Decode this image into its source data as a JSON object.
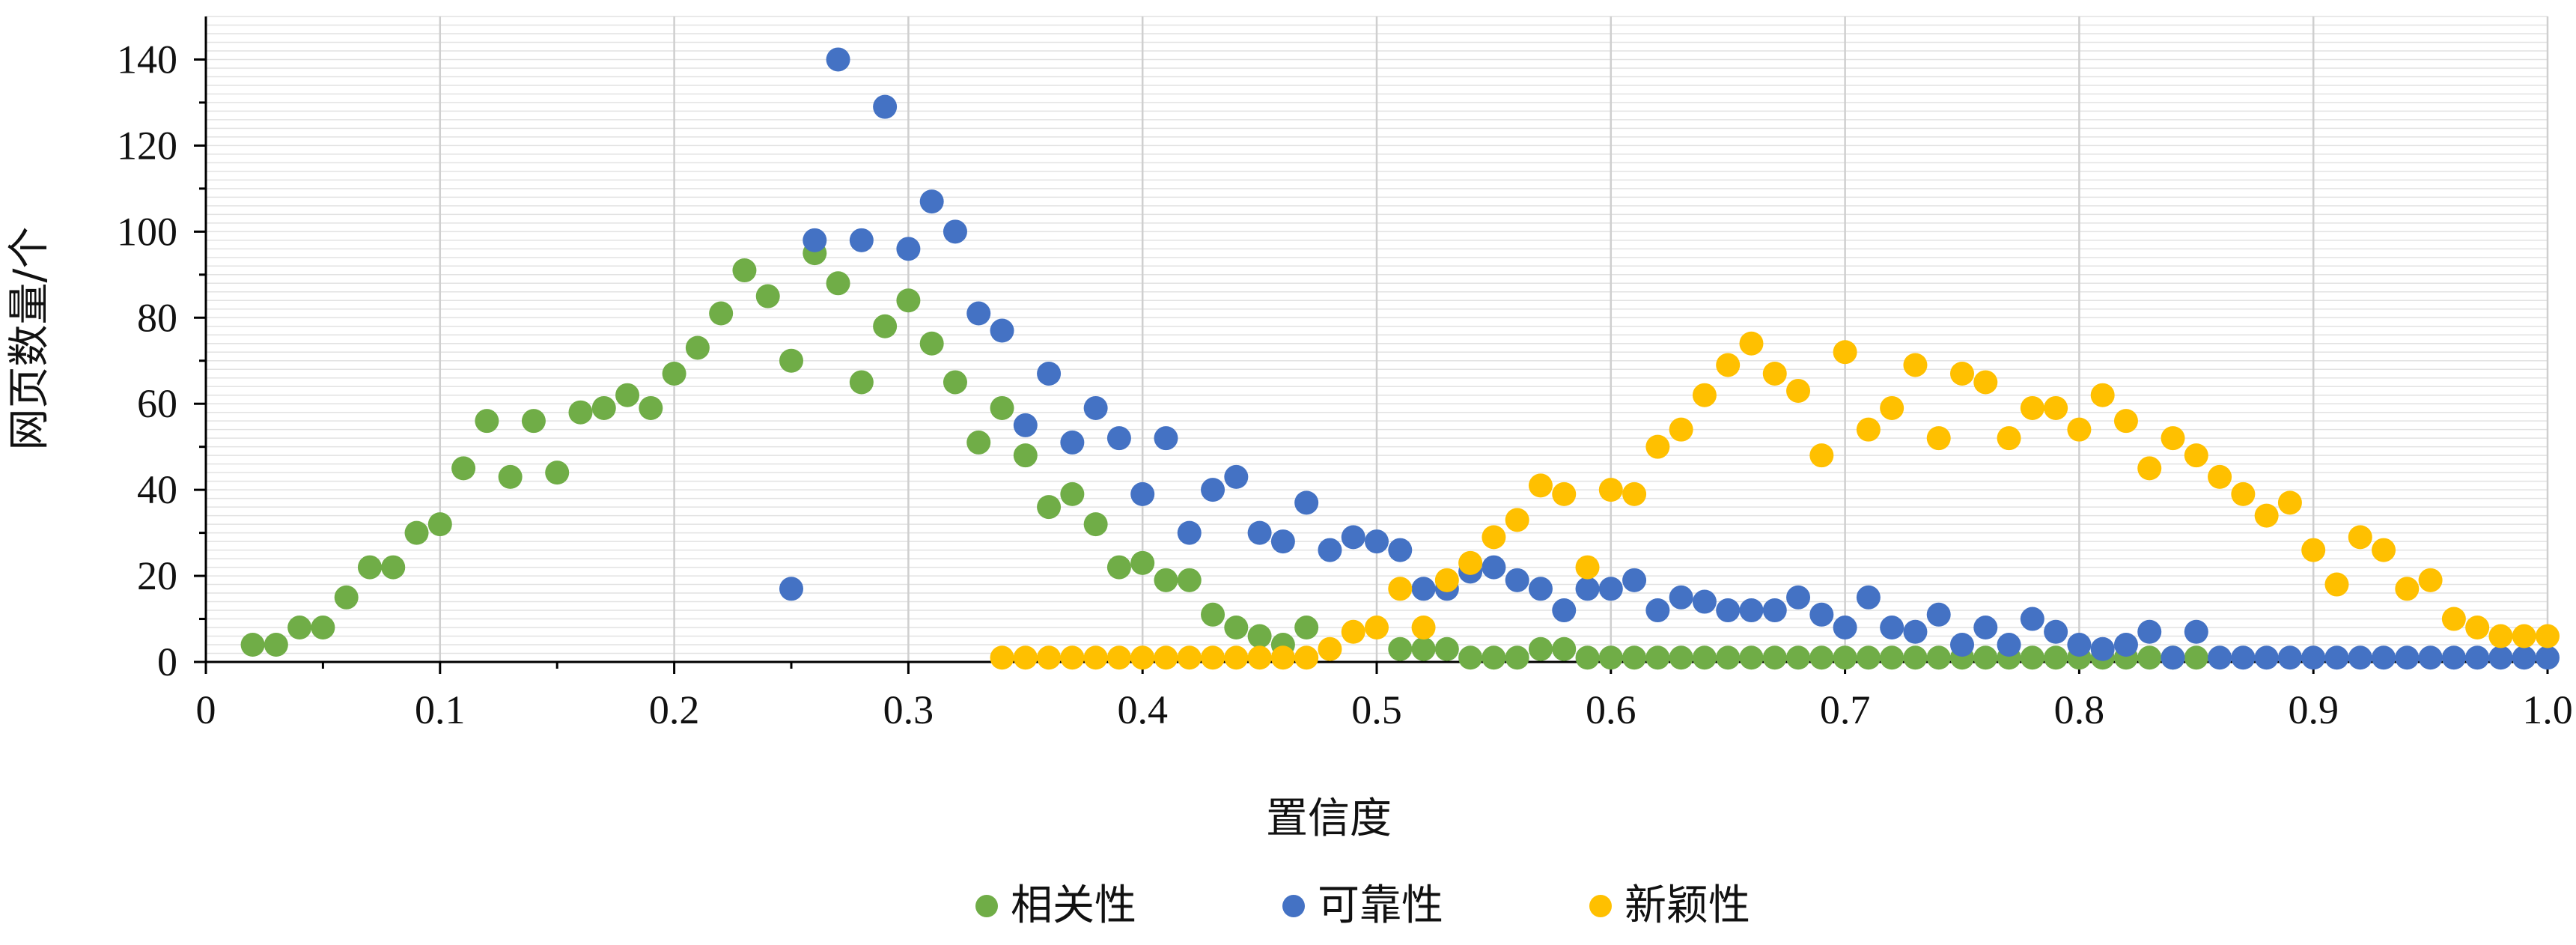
{
  "chart_data": {
    "type": "scatter",
    "title": "",
    "xlabel": "置信度",
    "ylabel": "网页数量/个",
    "xlim": [
      0,
      1.0
    ],
    "ylim": [
      0,
      150
    ],
    "x_ticks": [
      0,
      0.1,
      0.2,
      0.3,
      0.4,
      0.5,
      0.6,
      0.7,
      0.8,
      0.9,
      1.0
    ],
    "x_tick_labels": [
      "0",
      "0.1",
      "0.2",
      "0.3",
      "0.4",
      "0.5",
      "0.6",
      "0.7",
      "0.8",
      "0.9",
      "1.0"
    ],
    "y_ticks": [
      0,
      20,
      40,
      60,
      80,
      100,
      120,
      140
    ],
    "y_tick_labels": [
      "0",
      "20",
      "40",
      "60",
      "80",
      "100",
      "120",
      "140"
    ],
    "grid": "vertical major, horizontal minor",
    "legend_position": "bottom-center",
    "series": [
      {
        "name": "相关性",
        "color": "#70ad47",
        "points": [
          [
            0.02,
            4
          ],
          [
            0.03,
            4
          ],
          [
            0.04,
            8
          ],
          [
            0.05,
            8
          ],
          [
            0.06,
            15
          ],
          [
            0.07,
            22
          ],
          [
            0.08,
            22
          ],
          [
            0.09,
            30
          ],
          [
            0.1,
            32
          ],
          [
            0.11,
            45
          ],
          [
            0.12,
            56
          ],
          [
            0.13,
            43
          ],
          [
            0.14,
            56
          ],
          [
            0.15,
            44
          ],
          [
            0.16,
            58
          ],
          [
            0.17,
            59
          ],
          [
            0.18,
            62
          ],
          [
            0.19,
            59
          ],
          [
            0.2,
            67
          ],
          [
            0.21,
            73
          ],
          [
            0.22,
            81
          ],
          [
            0.23,
            91
          ],
          [
            0.24,
            85
          ],
          [
            0.25,
            70
          ],
          [
            0.26,
            95
          ],
          [
            0.27,
            88
          ],
          [
            0.28,
            65
          ],
          [
            0.29,
            78
          ],
          [
            0.3,
            84
          ],
          [
            0.31,
            74
          ],
          [
            0.32,
            65
          ],
          [
            0.33,
            51
          ],
          [
            0.34,
            59
          ],
          [
            0.35,
            48
          ],
          [
            0.36,
            36
          ],
          [
            0.37,
            39
          ],
          [
            0.38,
            32
          ],
          [
            0.39,
            22
          ],
          [
            0.4,
            23
          ],
          [
            0.41,
            19
          ],
          [
            0.42,
            19
          ],
          [
            0.43,
            11
          ],
          [
            0.44,
            8
          ],
          [
            0.45,
            6
          ],
          [
            0.46,
            4
          ],
          [
            0.47,
            8
          ],
          [
            0.51,
            3
          ],
          [
            0.52,
            3
          ],
          [
            0.53,
            3
          ],
          [
            0.54,
            1
          ],
          [
            0.55,
            1
          ],
          [
            0.56,
            1
          ],
          [
            0.57,
            3
          ],
          [
            0.58,
            3
          ],
          [
            0.59,
            1
          ],
          [
            0.6,
            1
          ],
          [
            0.61,
            1
          ],
          [
            0.62,
            1
          ],
          [
            0.63,
            1
          ],
          [
            0.64,
            1
          ],
          [
            0.65,
            1
          ],
          [
            0.66,
            1
          ],
          [
            0.67,
            1
          ],
          [
            0.68,
            1
          ],
          [
            0.69,
            1
          ],
          [
            0.7,
            1
          ],
          [
            0.71,
            1
          ],
          [
            0.72,
            1
          ],
          [
            0.73,
            1
          ],
          [
            0.74,
            1
          ],
          [
            0.75,
            1
          ],
          [
            0.76,
            1
          ],
          [
            0.77,
            1
          ],
          [
            0.78,
            1
          ],
          [
            0.79,
            1
          ],
          [
            0.8,
            1
          ],
          [
            0.81,
            1
          ],
          [
            0.82,
            1
          ],
          [
            0.83,
            1
          ],
          [
            0.84,
            1
          ],
          [
            0.85,
            1
          ]
        ]
      },
      {
        "name": "可靠性",
        "color": "#4472c4",
        "points": [
          [
            0.25,
            17
          ],
          [
            0.26,
            98
          ],
          [
            0.27,
            140
          ],
          [
            0.28,
            98
          ],
          [
            0.29,
            129
          ],
          [
            0.3,
            96
          ],
          [
            0.31,
            107
          ],
          [
            0.32,
            100
          ],
          [
            0.33,
            81
          ],
          [
            0.34,
            77
          ],
          [
            0.35,
            55
          ],
          [
            0.36,
            67
          ],
          [
            0.37,
            51
          ],
          [
            0.38,
            59
          ],
          [
            0.39,
            52
          ],
          [
            0.4,
            39
          ],
          [
            0.41,
            52
          ],
          [
            0.42,
            30
          ],
          [
            0.43,
            40
          ],
          [
            0.44,
            43
          ],
          [
            0.45,
            30
          ],
          [
            0.46,
            28
          ],
          [
            0.47,
            37
          ],
          [
            0.48,
            26
          ],
          [
            0.49,
            29
          ],
          [
            0.5,
            28
          ],
          [
            0.51,
            26
          ],
          [
            0.52,
            17
          ],
          [
            0.53,
            17
          ],
          [
            0.54,
            21
          ],
          [
            0.55,
            22
          ],
          [
            0.56,
            19
          ],
          [
            0.57,
            17
          ],
          [
            0.58,
            12
          ],
          [
            0.59,
            17
          ],
          [
            0.6,
            17
          ],
          [
            0.61,
            19
          ],
          [
            0.62,
            12
          ],
          [
            0.63,
            15
          ],
          [
            0.64,
            14
          ],
          [
            0.65,
            12
          ],
          [
            0.66,
            12
          ],
          [
            0.67,
            12
          ],
          [
            0.68,
            15
          ],
          [
            0.69,
            11
          ],
          [
            0.7,
            8
          ],
          [
            0.71,
            15
          ],
          [
            0.72,
            8
          ],
          [
            0.73,
            7
          ],
          [
            0.74,
            11
          ],
          [
            0.75,
            4
          ],
          [
            0.76,
            8
          ],
          [
            0.77,
            4
          ],
          [
            0.78,
            10
          ],
          [
            0.79,
            7
          ],
          [
            0.8,
            4
          ],
          [
            0.81,
            3
          ],
          [
            0.82,
            4
          ],
          [
            0.83,
            7
          ],
          [
            0.84,
            1
          ],
          [
            0.85,
            7
          ],
          [
            0.86,
            1
          ],
          [
            0.87,
            1
          ],
          [
            0.88,
            1
          ],
          [
            0.89,
            1
          ],
          [
            0.9,
            1
          ],
          [
            0.91,
            1
          ],
          [
            0.92,
            1
          ],
          [
            0.93,
            1
          ],
          [
            0.94,
            1
          ],
          [
            0.95,
            1
          ],
          [
            0.96,
            1
          ],
          [
            0.97,
            1
          ],
          [
            0.98,
            1
          ],
          [
            0.99,
            1
          ],
          [
            1.0,
            1
          ]
        ]
      },
      {
        "name": "新颖性",
        "color": "#ffc000",
        "points": [
          [
            0.34,
            1
          ],
          [
            0.35,
            1
          ],
          [
            0.36,
            1
          ],
          [
            0.37,
            1
          ],
          [
            0.38,
            1
          ],
          [
            0.39,
            1
          ],
          [
            0.4,
            1
          ],
          [
            0.41,
            1
          ],
          [
            0.42,
            1
          ],
          [
            0.43,
            1
          ],
          [
            0.44,
            1
          ],
          [
            0.45,
            1
          ],
          [
            0.46,
            1
          ],
          [
            0.47,
            1
          ],
          [
            0.48,
            3
          ],
          [
            0.49,
            7
          ],
          [
            0.5,
            8
          ],
          [
            0.51,
            17
          ],
          [
            0.52,
            8
          ],
          [
            0.53,
            19
          ],
          [
            0.54,
            23
          ],
          [
            0.55,
            29
          ],
          [
            0.56,
            33
          ],
          [
            0.57,
            41
          ],
          [
            0.58,
            39
          ],
          [
            0.59,
            22
          ],
          [
            0.6,
            40
          ],
          [
            0.61,
            39
          ],
          [
            0.62,
            50
          ],
          [
            0.63,
            54
          ],
          [
            0.64,
            62
          ],
          [
            0.65,
            69
          ],
          [
            0.66,
            74
          ],
          [
            0.67,
            67
          ],
          [
            0.68,
            63
          ],
          [
            0.69,
            48
          ],
          [
            0.7,
            72
          ],
          [
            0.71,
            54
          ],
          [
            0.72,
            59
          ],
          [
            0.73,
            69
          ],
          [
            0.74,
            52
          ],
          [
            0.75,
            67
          ],
          [
            0.76,
            65
          ],
          [
            0.77,
            52
          ],
          [
            0.78,
            59
          ],
          [
            0.79,
            59
          ],
          [
            0.8,
            54
          ],
          [
            0.81,
            62
          ],
          [
            0.82,
            56
          ],
          [
            0.83,
            45
          ],
          [
            0.84,
            52
          ],
          [
            0.85,
            48
          ],
          [
            0.86,
            43
          ],
          [
            0.87,
            39
          ],
          [
            0.88,
            34
          ],
          [
            0.89,
            37
          ],
          [
            0.9,
            26
          ],
          [
            0.91,
            18
          ],
          [
            0.92,
            29
          ],
          [
            0.93,
            26
          ],
          [
            0.94,
            17
          ],
          [
            0.95,
            19
          ],
          [
            0.96,
            10
          ],
          [
            0.97,
            8
          ],
          [
            0.98,
            6
          ],
          [
            0.99,
            6
          ],
          [
            1.0,
            6
          ]
        ]
      }
    ]
  }
}
